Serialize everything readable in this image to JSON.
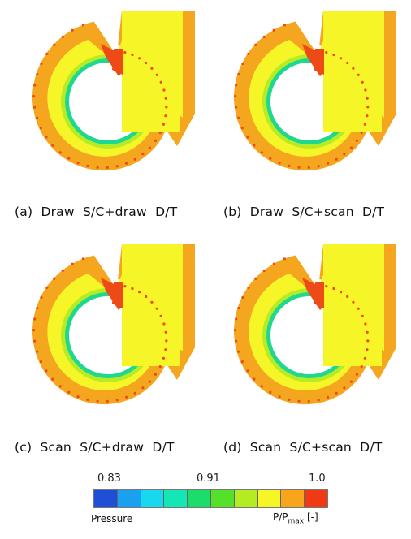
{
  "panels": [
    {
      "caption": "(a)  Draw  S/C+draw  D/T"
    },
    {
      "caption": "(b)  Draw  S/C+scan  D/T"
    },
    {
      "caption": "(c)  Scan  S/C+draw  D/T"
    },
    {
      "caption": "(d)  Scan  S/C+scan  D/T"
    }
  ],
  "legend": {
    "ticks": [
      "0.83",
      "0.91",
      "1.0"
    ],
    "left_label": "Pressure",
    "right_label_main": "P/P",
    "right_label_sub": "max",
    "right_label_unit": "[-]",
    "colors": [
      "#1f4fd6",
      "#1aa0ee",
      "#17d8ee",
      "#15e6b6",
      "#1cdc6a",
      "#55e02a",
      "#b4ec24",
      "#f6f526",
      "#f9a51c",
      "#ef3a14"
    ]
  },
  "colors": {
    "outer": "#f4a61f",
    "mid": "#f6f528",
    "inner": "#b5ec26",
    "innerEdge": "#1ed88f",
    "red": "#ee4a17"
  }
}
